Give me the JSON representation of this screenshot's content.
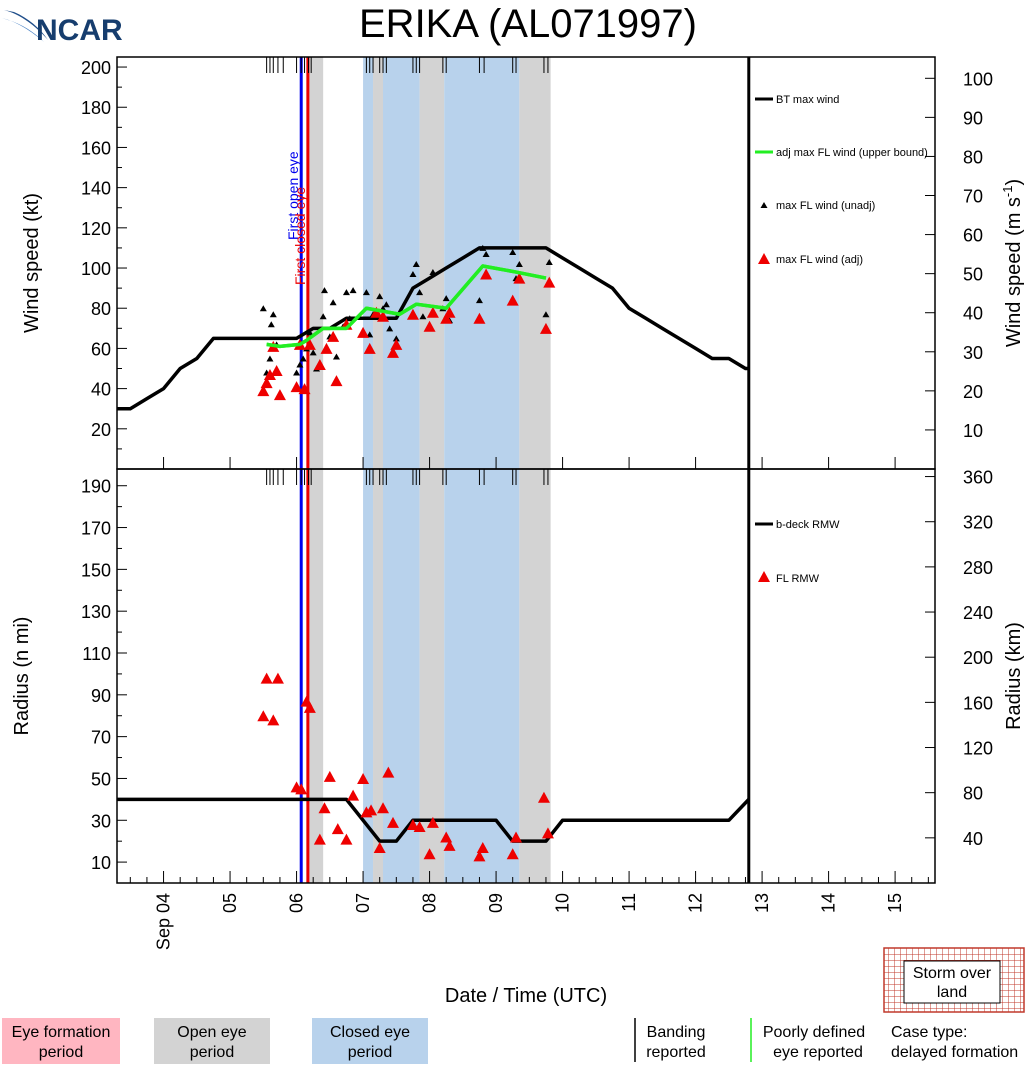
{
  "logo": {
    "text": "NCAR"
  },
  "chart_data": {
    "type": "line",
    "title": "ERIKA (AL071997)",
    "xlabel": "Date / Time (UTC)",
    "x_axis": {
      "range_days": [
        3.3,
        15.6
      ],
      "tick_labels": [
        {
          "day": 4,
          "label": "Sep 04"
        },
        {
          "day": 5,
          "label": "05"
        },
        {
          "day": 6,
          "label": "06"
        },
        {
          "day": 7,
          "label": "07"
        },
        {
          "day": 8,
          "label": "08"
        },
        {
          "day": 9,
          "label": "09"
        },
        {
          "day": 10,
          "label": "10"
        },
        {
          "day": 11,
          "label": "11"
        },
        {
          "day": 12,
          "label": "12"
        },
        {
          "day": 13,
          "label": "13"
        },
        {
          "day": 14,
          "label": "14"
        },
        {
          "day": 15,
          "label": "15"
        }
      ]
    },
    "background_periods": [
      {
        "type": "open_eye",
        "start": 6.15,
        "end": 6.4
      },
      {
        "type": "closed_eye",
        "start": 7.0,
        "end": 7.15
      },
      {
        "type": "open_eye",
        "start": 7.15,
        "end": 7.3
      },
      {
        "type": "closed_eye",
        "start": 7.3,
        "end": 7.85
      },
      {
        "type": "open_eye",
        "start": 7.85,
        "end": 8.22
      },
      {
        "type": "closed_eye",
        "start": 8.22,
        "end": 9.35
      },
      {
        "type": "open_eye",
        "start": 9.35,
        "end": 9.82
      }
    ],
    "events": [
      {
        "label": "First open eye",
        "day": 6.07,
        "color": "#0000ee"
      },
      {
        "label": "First closed eye",
        "day": 6.17,
        "color": "#ee0000"
      }
    ],
    "last_data_day": 12.8,
    "obs_ticks": [
      5.55,
      5.6,
      5.65,
      5.72,
      5.8,
      6.0,
      6.07,
      6.12,
      6.18,
      6.22,
      7.05,
      7.1,
      7.15,
      7.25,
      7.3,
      7.35,
      7.75,
      7.8,
      7.85,
      8.2,
      8.25,
      8.75,
      8.82,
      9.25,
      9.3,
      9.72,
      9.78
    ],
    "wind_panel": {
      "ylabel": "Wind speed (kt)",
      "ylabel_right": "Wind speed (m s",
      "ylabel_right_sup": "-1",
      "ylabel_right_end": ")",
      "ylim": [
        0,
        205
      ],
      "yticks": [
        20,
        40,
        60,
        80,
        100,
        120,
        140,
        160,
        180,
        200
      ],
      "yticks_right_ms": [
        10,
        20,
        30,
        40,
        50,
        60,
        70,
        80,
        90,
        100
      ],
      "series": [
        {
          "name": "BT max wind",
          "kind": "line",
          "color": "#000000",
          "x": [
            3.3,
            3.5,
            3.75,
            4.0,
            4.25,
            4.5,
            4.75,
            5.0,
            5.25,
            5.5,
            5.75,
            6.0,
            6.25,
            6.5,
            6.75,
            7.0,
            7.25,
            7.5,
            7.75,
            8.0,
            8.25,
            8.5,
            8.75,
            9.0,
            9.25,
            9.5,
            9.75,
            10.0,
            10.25,
            10.5,
            10.75,
            11.0,
            11.25,
            11.5,
            11.75,
            12.0,
            12.25,
            12.5,
            12.75,
            12.8
          ],
          "y": [
            30,
            30,
            35,
            40,
            50,
            55,
            65,
            65,
            65,
            65,
            65,
            65,
            70,
            70,
            75,
            75,
            75,
            75,
            90,
            95,
            100,
            105,
            110,
            110,
            110,
            110,
            110,
            105,
            100,
            95,
            90,
            80,
            75,
            70,
            65,
            60,
            55,
            55,
            50,
            50
          ]
        },
        {
          "name": "adj max FL wind (upper bound)",
          "kind": "line",
          "color": "#22ee22",
          "x": [
            5.55,
            5.75,
            6.05,
            6.15,
            6.4,
            6.75,
            7.05,
            7.55,
            7.8,
            8.25,
            8.8,
            9.3,
            9.75
          ],
          "y": [
            62,
            61,
            62,
            64,
            70,
            70,
            80,
            77,
            82,
            80,
            101,
            98,
            95
          ]
        },
        {
          "name": "max FL wind (unadj)",
          "kind": "scatter-small",
          "color": "#000000",
          "x": [
            5.5,
            5.55,
            5.6,
            5.62,
            5.65,
            5.7,
            6.0,
            6.05,
            6.1,
            6.15,
            6.2,
            6.25,
            6.3,
            6.4,
            6.42,
            6.5,
            6.55,
            6.6,
            6.7,
            6.75,
            6.8,
            6.85,
            7.05,
            7.1,
            7.15,
            7.25,
            7.3,
            7.35,
            7.4,
            7.5,
            7.75,
            7.8,
            7.85,
            7.9,
            8.05,
            8.2,
            8.25,
            8.3,
            8.75,
            8.8,
            8.85,
            9.25,
            9.3,
            9.35,
            9.75,
            9.8
          ],
          "y": [
            80,
            48,
            55,
            72,
            77,
            62,
            48,
            52,
            55,
            60,
            68,
            58,
            50,
            76,
            89,
            66,
            83,
            56,
            71,
            88,
            75,
            89,
            88,
            67,
            77,
            86,
            80,
            82,
            70,
            65,
            97,
            102,
            88,
            76,
            98,
            80,
            85,
            74,
            84,
            110,
            107,
            108,
            95,
            102,
            77,
            103
          ]
        },
        {
          "name": "max FL wind (adj)",
          "kind": "scatter-large",
          "color": "#ee0000",
          "x": [
            5.5,
            5.55,
            5.6,
            5.65,
            5.7,
            5.75,
            6.0,
            6.05,
            6.12,
            6.2,
            6.35,
            6.45,
            6.55,
            6.6,
            6.75,
            7.0,
            7.1,
            7.2,
            7.3,
            7.45,
            7.5,
            7.75,
            8.0,
            8.05,
            8.25,
            8.3,
            8.75,
            8.85,
            9.25,
            9.35,
            9.75,
            9.8
          ],
          "y": [
            39,
            43,
            47,
            61,
            49,
            37,
            41,
            62,
            40,
            62,
            52,
            60,
            66,
            44,
            72,
            68,
            60,
            78,
            76,
            58,
            62,
            77,
            71,
            78,
            75,
            78,
            75,
            97,
            84,
            95,
            70,
            93
          ]
        }
      ]
    },
    "radius_panel": {
      "ylabel": "Radius (n mi)",
      "ylabel_right": "Radius (km)",
      "ylim": [
        0,
        198
      ],
      "yticks": [
        10,
        30,
        50,
        70,
        90,
        110,
        130,
        150,
        170,
        190
      ],
      "yticks_right_km": [
        40,
        80,
        120,
        160,
        200,
        240,
        280,
        320,
        360
      ],
      "series": [
        {
          "name": "b-deck RMW",
          "kind": "line",
          "color": "#000000",
          "x": [
            3.3,
            6.75,
            7.25,
            7.5,
            7.75,
            9.0,
            9.25,
            9.75,
            10.0,
            12.5,
            12.8
          ],
          "y": [
            40,
            40,
            20,
            20,
            30,
            30,
            20,
            20,
            30,
            30,
            40
          ]
        },
        {
          "name": "FL RMW",
          "kind": "scatter-large",
          "color": "#ee0000",
          "x": [
            5.5,
            5.55,
            5.65,
            5.72,
            6.0,
            6.07,
            6.15,
            6.2,
            6.35,
            6.42,
            6.5,
            6.62,
            6.75,
            6.85,
            7.0,
            7.05,
            7.12,
            7.25,
            7.3,
            7.38,
            7.45,
            7.75,
            7.85,
            8.0,
            8.05,
            8.25,
            8.3,
            8.75,
            8.8,
            9.25,
            9.3,
            9.72,
            9.78
          ],
          "y": [
            80,
            98,
            78,
            98,
            46,
            45,
            87,
            84,
            21,
            36,
            51,
            26,
            21,
            42,
            50,
            34,
            35,
            17,
            36,
            53,
            29,
            28,
            27,
            14,
            29,
            22,
            18,
            13,
            17,
            14,
            22,
            41,
            24
          ]
        }
      ]
    }
  },
  "legend": {
    "eye_formation": {
      "line1": "Eye formation",
      "line2": "period",
      "color": "#ffb6c1"
    },
    "open_eye": {
      "line1": "Open eye",
      "line2": "period",
      "color": "#d3d3d3"
    },
    "closed_eye": {
      "line1": "Closed eye",
      "line2": "period",
      "color": "#b8d2ec"
    },
    "banding": {
      "line1": "Banding",
      "line2": "reported"
    },
    "poorly_defined": {
      "line1": "Poorly defined",
      "line2": "eye reported"
    },
    "case_type": {
      "line1": "Case type:",
      "line2": "delayed formation"
    },
    "storm_over_land": {
      "line1": "Storm over",
      "line2": "land"
    }
  }
}
